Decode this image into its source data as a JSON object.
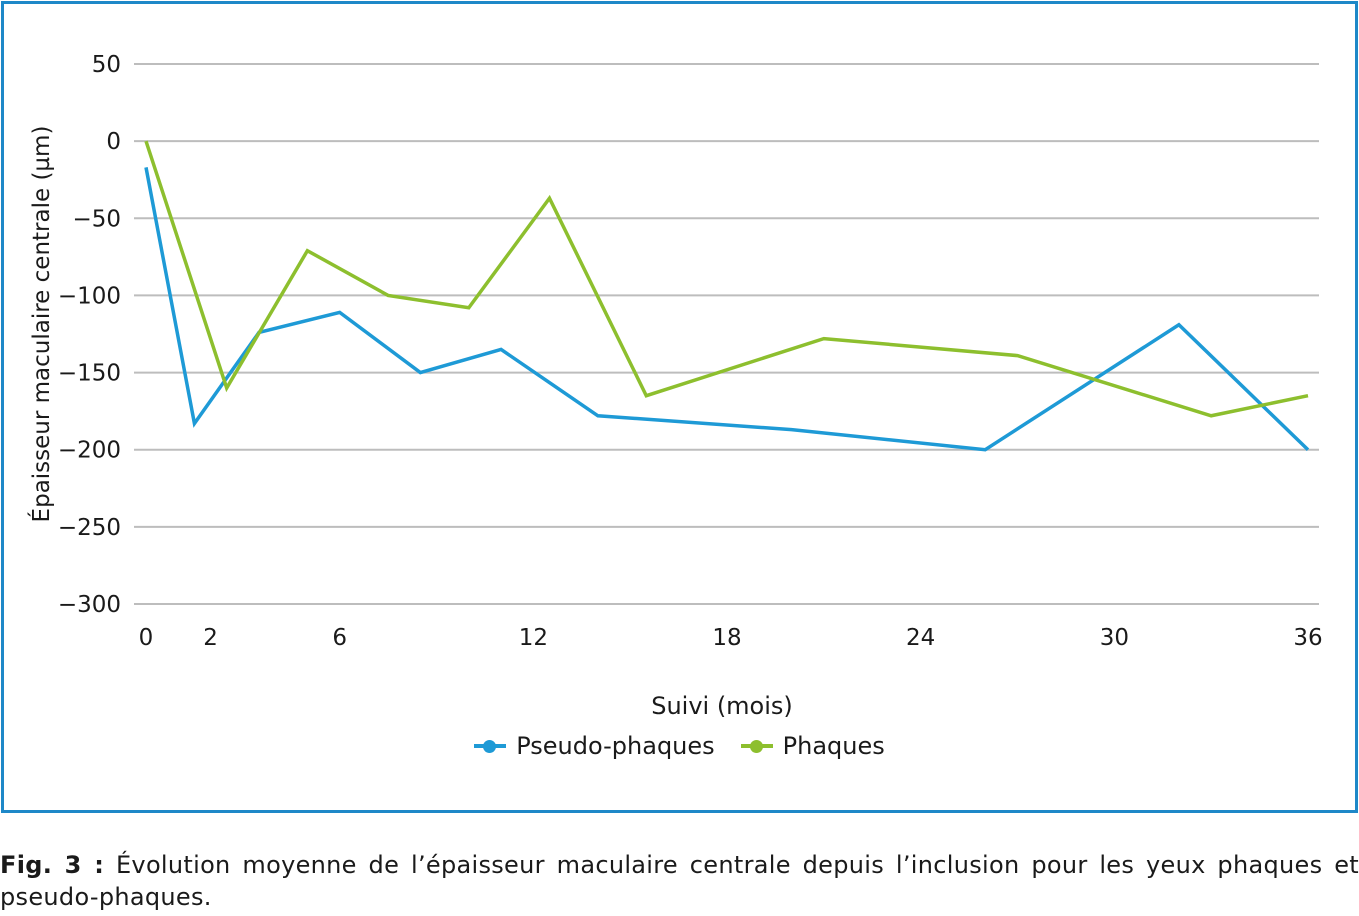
{
  "chart_data": {
    "type": "line",
    "xlabel": "Suivi (mois)",
    "ylabel": "Épaisseur maculaire centrale (µm)",
    "ylim": [
      -300,
      50
    ],
    "xlim": [
      0,
      36
    ],
    "xticks": [
      0,
      2,
      6,
      12,
      18,
      24,
      30,
      36
    ],
    "xtick_labels": [
      "0",
      "2",
      "6",
      "12",
      "18",
      "24",
      "30",
      "36"
    ],
    "yticks": [
      50,
      0,
      -50,
      -100,
      -150,
      -200,
      -250,
      -300
    ],
    "ytick_labels": [
      "50",
      "0",
      "−50",
      "−100",
      "−150",
      "−200",
      "−250",
      "−300"
    ],
    "grid": "horizontal",
    "legend_position": "bottom-center",
    "series": [
      {
        "name": "Pseudo-phaques",
        "color": "#1e9ad6",
        "x": [
          0,
          1.5,
          3.5,
          6,
          8.5,
          11,
          14,
          20,
          26,
          32,
          36
        ],
        "y": [
          -17,
          -183,
          -124,
          -111,
          -150,
          -135,
          -178,
          -187,
          -200,
          -119,
          -200
        ]
      },
      {
        "name": "Phaques",
        "color": "#8dbf2e",
        "x": [
          0,
          2.5,
          5,
          7.5,
          10,
          12.5,
          15.5,
          21,
          27,
          33,
          36
        ],
        "y": [
          0,
          -160,
          -71,
          -100,
          -108,
          -37,
          -165,
          -128,
          -139,
          -178,
          -165
        ]
      }
    ]
  },
  "caption": {
    "label": "Fig. 3 :",
    "text": " Évolution moyenne de l’épaisseur maculaire centrale depuis l’inclusion pour les yeux phaques et pseudo-phaques."
  }
}
